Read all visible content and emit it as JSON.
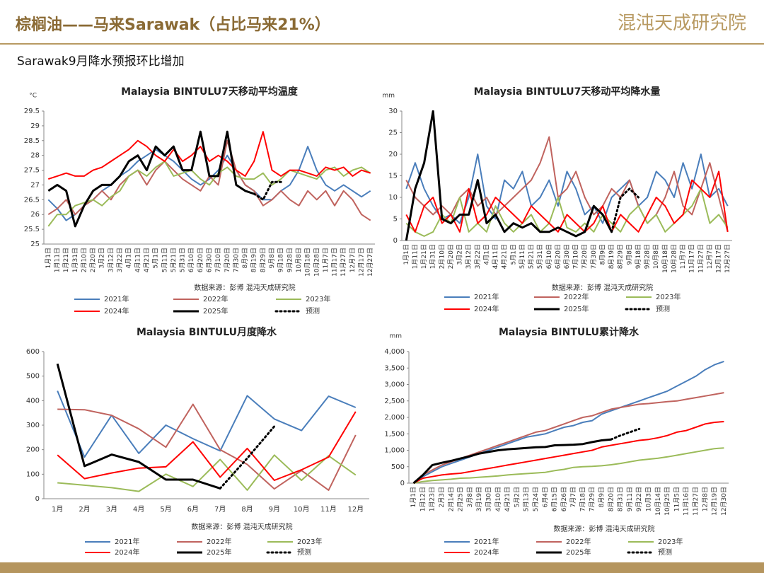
{
  "header": {
    "title": "棕榈油——马来Sarawak（占比马来21%）",
    "logo": "混沌天成研究院"
  },
  "subtitle": "Sarawak9月降水预报环比增加",
  "chart_data": [
    {
      "type": "line",
      "title": "Malaysia BINTULU7天移动平均温度",
      "unit": "°C",
      "source": "数据来源：彭博  混沌天成研究院",
      "categories": [
        "1月1日",
        "1月11日",
        "1月21日",
        "1月31日",
        "2月10日",
        "2月20日",
        "3月2日",
        "3月12日",
        "3月22日",
        "4月1日",
        "4月11日",
        "4月21日",
        "5月1日",
        "5月11日",
        "5月21日",
        "5月31日",
        "6月10日",
        "6月20日",
        "6月30日",
        "7月10日",
        "7月20日",
        "7月30日",
        "8月9日",
        "8月19日",
        "8月29日",
        "9月8日",
        "9月18日",
        "9月28日",
        "10月8日",
        "10月18日",
        "10月28日",
        "11月7日",
        "11月17日",
        "11月27日",
        "12月7日",
        "12月17日",
        "12月27日"
      ],
      "ylim": [
        25,
        29.5
      ],
      "yticks": [
        25,
        25.5,
        26,
        26.5,
        27,
        27.5,
        28,
        28.5,
        29,
        29.5
      ],
      "series": [
        {
          "name": "2021年",
          "color": "#4a7ebb",
          "values": [
            26.5,
            26.2,
            25.8,
            26.0,
            26.3,
            26.5,
            26.8,
            27.0,
            27.3,
            27.5,
            27.8,
            28.0,
            28.2,
            28.0,
            27.8,
            27.5,
            27.2,
            27.0,
            27.2,
            27.5,
            28.0,
            27.5,
            27.0,
            26.8,
            26.5,
            26.5,
            26.8,
            27.0,
            27.5,
            28.3,
            27.5,
            27.0,
            26.8,
            27.0,
            26.8,
            26.6,
            26.8
          ]
        },
        {
          "name": "2022年",
          "color": "#c0635e",
          "values": [
            26.0,
            26.2,
            26.5,
            26.0,
            26.3,
            26.5,
            26.8,
            26.5,
            27.0,
            27.3,
            27.5,
            27.0,
            27.5,
            27.8,
            27.5,
            27.2,
            27.0,
            26.8,
            27.3,
            27.0,
            28.5,
            27.5,
            27.0,
            26.8,
            26.3,
            26.5,
            26.8,
            26.5,
            26.3,
            26.8,
            26.5,
            26.8,
            26.3,
            26.8,
            26.5,
            26.0,
            25.8
          ]
        },
        {
          "name": "2023年",
          "color": "#9bbb59",
          "values": [
            25.6,
            26.0,
            26.0,
            26.3,
            26.4,
            26.5,
            26.3,
            26.6,
            26.8,
            27.3,
            27.5,
            27.3,
            27.6,
            27.8,
            27.3,
            27.4,
            27.5,
            27.2,
            27.0,
            27.4,
            27.6,
            27.3,
            27.2,
            27.2,
            27.4,
            27.0,
            27.2,
            27.5,
            27.4,
            27.3,
            27.2,
            27.5,
            27.6,
            27.3,
            27.5,
            27.6,
            27.4
          ]
        },
        {
          "name": "2024年",
          "color": "#ff0000",
          "values": [
            27.2,
            27.3,
            27.4,
            27.3,
            27.3,
            27.5,
            27.6,
            27.8,
            28.0,
            28.2,
            28.5,
            28.3,
            28.0,
            27.8,
            28.2,
            27.8,
            28.0,
            28.3,
            27.8,
            28.0,
            27.8,
            27.5,
            27.3,
            27.8,
            28.8,
            27.5,
            27.3,
            27.5,
            27.5,
            27.4,
            27.3,
            27.6,
            27.5,
            27.6,
            27.3,
            27.5,
            27.4
          ]
        },
        {
          "name": "2025年",
          "color": "#000000",
          "width": 3,
          "values": [
            26.8,
            27.0,
            26.8,
            25.6,
            26.3,
            26.8,
            27.0,
            27.0,
            27.3,
            27.8,
            28.0,
            27.5,
            28.3,
            28.0,
            28.3,
            27.5,
            27.5,
            28.8,
            27.3,
            27.3,
            28.8,
            27.0,
            26.8,
            26.7,
            null,
            null,
            null,
            null,
            null,
            null,
            null,
            null,
            null,
            null,
            null,
            null,
            null
          ]
        },
        {
          "name": "预测",
          "color": "#000000",
          "width": 3,
          "dash": true,
          "values": [
            null,
            null,
            null,
            null,
            null,
            null,
            null,
            null,
            null,
            null,
            null,
            null,
            null,
            null,
            null,
            null,
            null,
            null,
            null,
            null,
            null,
            null,
            null,
            26.7,
            26.5,
            27.1,
            27.1,
            null,
            null,
            null,
            null,
            null,
            null,
            null,
            null,
            null,
            null
          ]
        }
      ]
    },
    {
      "type": "line",
      "title": "Malaysia BINTULU7天移动平均降水量",
      "unit": "mm",
      "source": "数据来源：彭博  混沌天成研究院",
      "categories": [
        "1月1日",
        "1月11日",
        "1月21日",
        "1月31日",
        "2月10日",
        "2月20日",
        "3月2日",
        "3月12日",
        "3月22日",
        "4月1日",
        "4月11日",
        "4月21日",
        "5月1日",
        "5月11日",
        "5月21日",
        "5月31日",
        "6月10日",
        "6月20日",
        "6月30日",
        "7月10日",
        "7月20日",
        "7月30日",
        "8月9日",
        "8月19日",
        "8月29日",
        "9月8日",
        "9月18日",
        "9月28日",
        "10月8日",
        "10月18日",
        "10月28日",
        "11月7日",
        "11月17日",
        "11月27日",
        "12月7日",
        "12月17日",
        "12月27日"
      ],
      "ylim": [
        0,
        30
      ],
      "yticks": [
        0,
        5,
        10,
        15,
        20,
        25,
        30
      ],
      "series": [
        {
          "name": "2021年",
          "color": "#4a7ebb",
          "values": [
            12,
            18,
            12,
            8,
            5,
            6,
            4,
            10,
            20,
            8,
            5,
            14,
            12,
            16,
            8,
            10,
            14,
            8,
            16,
            12,
            6,
            8,
            4,
            10,
            12,
            14,
            8,
            10,
            16,
            14,
            10,
            18,
            12,
            20,
            10,
            12,
            8
          ]
        },
        {
          "name": "2022年",
          "color": "#c0635e",
          "values": [
            14,
            10,
            8,
            6,
            8,
            6,
            10,
            12,
            8,
            10,
            6,
            8,
            10,
            12,
            14,
            18,
            24,
            10,
            12,
            16,
            10,
            6,
            8,
            12,
            10,
            14,
            8,
            4,
            6,
            10,
            16,
            8,
            6,
            12,
            18,
            10,
            2
          ]
        },
        {
          "name": "2023年",
          "color": "#9bbb59",
          "values": [
            4,
            2,
            1,
            2,
            6,
            4,
            10,
            2,
            4,
            2,
            8,
            4,
            2,
            4,
            6,
            2,
            4,
            10,
            3,
            2,
            4,
            2,
            6,
            4,
            2,
            6,
            8,
            4,
            6,
            2,
            4,
            6,
            8,
            12,
            4,
            6,
            3
          ]
        },
        {
          "name": "2024年",
          "color": "#ff0000",
          "values": [
            6,
            2,
            8,
            10,
            4,
            6,
            2,
            12,
            4,
            6,
            10,
            8,
            6,
            4,
            8,
            6,
            4,
            2,
            6,
            4,
            2,
            4,
            8,
            2,
            6,
            4,
            2,
            6,
            10,
            8,
            4,
            6,
            14,
            12,
            10,
            16,
            2
          ]
        },
        {
          "name": "2025年",
          "color": "#000000",
          "width": 3,
          "values": [
            0,
            12,
            18,
            30,
            5,
            4,
            6,
            6,
            14,
            4,
            6,
            2,
            4,
            3,
            4,
            2,
            2,
            3,
            2,
            1,
            2,
            8,
            6,
            2,
            null,
            null,
            null,
            null,
            null,
            null,
            null,
            null,
            null,
            null,
            null,
            null,
            null
          ]
        },
        {
          "name": "预测",
          "color": "#000000",
          "width": 3,
          "dash": true,
          "values": [
            null,
            null,
            null,
            null,
            null,
            null,
            null,
            null,
            null,
            null,
            null,
            null,
            null,
            null,
            null,
            null,
            null,
            null,
            null,
            null,
            null,
            null,
            null,
            2,
            10,
            12,
            10,
            null,
            null,
            null,
            null,
            null,
            null,
            null,
            null,
            null,
            null
          ]
        }
      ]
    },
    {
      "type": "line",
      "title": "Malaysia BINTULU月度降水",
      "source": "数据来源：彭博  混沌天成研究院",
      "categories": [
        "1月",
        "2月",
        "3月",
        "4月",
        "5月",
        "6月",
        "7月",
        "8月",
        "9月",
        "10月",
        "11月",
        "12月"
      ],
      "ylim": [
        0,
        600
      ],
      "yticks": [
        0,
        100,
        200,
        300,
        400,
        500,
        600
      ],
      "series": [
        {
          "name": "2021年",
          "color": "#4a7ebb",
          "values": [
            440,
            170,
            340,
            185,
            300,
            245,
            195,
            420,
            325,
            278,
            418,
            372
          ]
        },
        {
          "name": "2022年",
          "color": "#c0635e",
          "values": [
            365,
            363,
            340,
            285,
            210,
            385,
            200,
            140,
            40,
            115,
            35,
            260
          ]
        },
        {
          "name": "2023年",
          "color": "#9bbb59",
          "values": [
            65,
            55,
            45,
            30,
            100,
            50,
            160,
            35,
            178,
            75,
            175,
            97
          ]
        },
        {
          "name": "2024年",
          "color": "#ff0000",
          "values": [
            178,
            82,
            105,
            125,
            130,
            232,
            88,
            205,
            75,
            118,
            170,
            355
          ]
        },
        {
          "name": "2025年",
          "color": "#000000",
          "width": 3,
          "values": [
            550,
            133,
            180,
            150,
            78,
            78,
            42,
            null,
            null,
            null,
            null,
            null
          ]
        },
        {
          "name": "预测",
          "color": "#000000",
          "width": 3,
          "dash": true,
          "values": [
            null,
            null,
            null,
            null,
            null,
            null,
            42,
            165,
            295,
            null,
            null,
            null
          ]
        }
      ]
    },
    {
      "type": "line",
      "title": "Malaysia BINTULU累计降水",
      "unit": "mm",
      "source": "数据来源：彭博  混沌天成研究院",
      "categories": [
        "1月1日",
        "1月12日",
        "1月23日",
        "2月3日",
        "2月14日",
        "2月25日",
        "3月8日",
        "3月19日",
        "3月30日",
        "4月10日",
        "4月21日",
        "5月2日",
        "5月13日",
        "5月24日",
        "6月4日",
        "6月15日",
        "6月26日",
        "7月7日",
        "7月18日",
        "7月29日",
        "8月9日",
        "8月20日",
        "8月31日",
        "9月11日",
        "9月22日",
        "10月3日",
        "10月14日",
        "10月25日",
        "11月5日",
        "11月16日",
        "11月27日",
        "12月8日",
        "12月19日",
        "12月30日"
      ],
      "ylim": [
        0,
        4000
      ],
      "yticks": [
        0,
        {
          "value": 500,
          "label": "500"
        },
        {
          "value": 1000,
          "label": "1,000"
        },
        {
          "value": 1500,
          "label": "1,500"
        },
        {
          "value": 2000,
          "label": "2,000"
        },
        {
          "value": 2500,
          "label": "2,500"
        },
        {
          "value": 3000,
          "label": "3,000"
        },
        {
          "value": 3500,
          "label": "3,500"
        },
        {
          "value": 4000,
          "label": "4,000"
        }
      ],
      "series": [
        {
          "name": "2021年",
          "color": "#4a7ebb",
          "values": [
            0,
            200,
            350,
            500,
            600,
            700,
            800,
            900,
            1000,
            1100,
            1200,
            1300,
            1400,
            1450,
            1500,
            1600,
            1700,
            1750,
            1850,
            1900,
            2100,
            2200,
            2300,
            2400,
            2500,
            2600,
            2700,
            2800,
            2950,
            3100,
            3250,
            3450,
            3600,
            3700
          ]
        },
        {
          "name": "2022年",
          "color": "#c0635e",
          "values": [
            0,
            250,
            400,
            550,
            650,
            750,
            850,
            950,
            1050,
            1150,
            1250,
            1350,
            1450,
            1550,
            1600,
            1700,
            1800,
            1900,
            2000,
            2050,
            2150,
            2250,
            2300,
            2350,
            2400,
            2420,
            2450,
            2480,
            2500,
            2550,
            2600,
            2650,
            2700,
            2750
          ]
        },
        {
          "name": "2023年",
          "color": "#9bbb59",
          "values": [
            0,
            50,
            80,
            100,
            120,
            150,
            160,
            180,
            200,
            220,
            250,
            270,
            290,
            310,
            330,
            380,
            420,
            480,
            500,
            510,
            530,
            560,
            600,
            650,
            700,
            730,
            760,
            800,
            850,
            900,
            950,
            1000,
            1050,
            1070
          ]
        },
        {
          "name": "2024年",
          "color": "#ff0000",
          "values": [
            0,
            150,
            200,
            250,
            280,
            300,
            350,
            400,
            450,
            500,
            550,
            600,
            650,
            700,
            750,
            800,
            850,
            900,
            950,
            1000,
            1100,
            1150,
            1200,
            1250,
            1300,
            1330,
            1380,
            1450,
            1550,
            1600,
            1700,
            1800,
            1850,
            1870
          ]
        },
        {
          "name": "2025年",
          "color": "#000000",
          "width": 3,
          "values": [
            0,
            250,
            550,
            620,
            680,
            750,
            820,
            900,
            950,
            1000,
            1030,
            1050,
            1070,
            1090,
            1100,
            1150,
            1160,
            1170,
            1190,
            1250,
            1300,
            1330,
            null,
            null,
            null,
            null,
            null,
            null,
            null,
            null,
            null,
            null,
            null,
            null
          ]
        },
        {
          "name": "预测",
          "color": "#000000",
          "width": 3,
          "dash": true,
          "values": [
            null,
            null,
            null,
            null,
            null,
            null,
            null,
            null,
            null,
            null,
            null,
            null,
            null,
            null,
            null,
            null,
            null,
            null,
            null,
            null,
            null,
            1330,
            1450,
            1550,
            1650,
            null,
            null,
            null,
            null,
            null,
            null,
            null,
            null,
            null
          ]
        }
      ]
    }
  ]
}
